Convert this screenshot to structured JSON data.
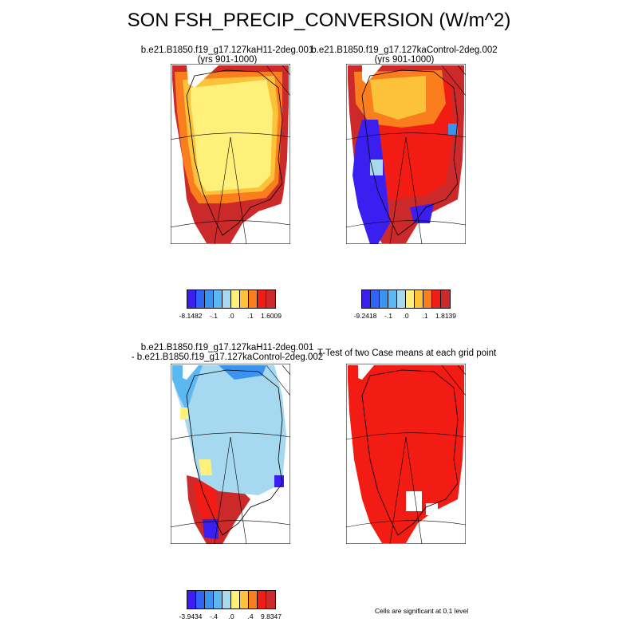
{
  "title": "SON FSH_PRECIP_CONVERSION (W/m^2)",
  "panels": [
    {
      "title_lines": [
        "b.e21.B1850.f19_g17.127kaH11-2deg.001",
        "(yrs 901-1000)"
      ]
    },
    {
      "title_lines": [
        "b.e21.B1850.f19_g17.127kaControl-2deg.002",
        "(yrs 901-1000)"
      ]
    },
    {
      "title_lines": [
        "b.e21.B1850.f19_g17.127kaH11-2deg.001",
        "- b.e21.B1850.f19_g17.127kaControl-2deg.002"
      ]
    },
    {
      "title_lines": [
        "T-Test of two Case means at each grid point"
      ]
    }
  ],
  "colorbars": [
    {
      "labels": [
        "-8.1482",
        "-.1",
        ".0",
        ".1",
        "1.6009"
      ]
    },
    {
      "labels": [
        "-9.2418",
        "-.1",
        ".0",
        ".1",
        "1.8139"
      ]
    },
    {
      "labels": [
        "-3.9434",
        "-.4",
        ".0",
        ".4",
        "9.8347"
      ]
    }
  ],
  "palette": [
    "#3b1ff0",
    "#2f64f5",
    "#3b93f0",
    "#5cb8f2",
    "#a6d8f0",
    "#fff07a",
    "#fcc23a",
    "#fa7d1e",
    "#f21c14",
    "#cc2a2a"
  ],
  "significance_note": "Cells are significant at 0.1 level"
}
